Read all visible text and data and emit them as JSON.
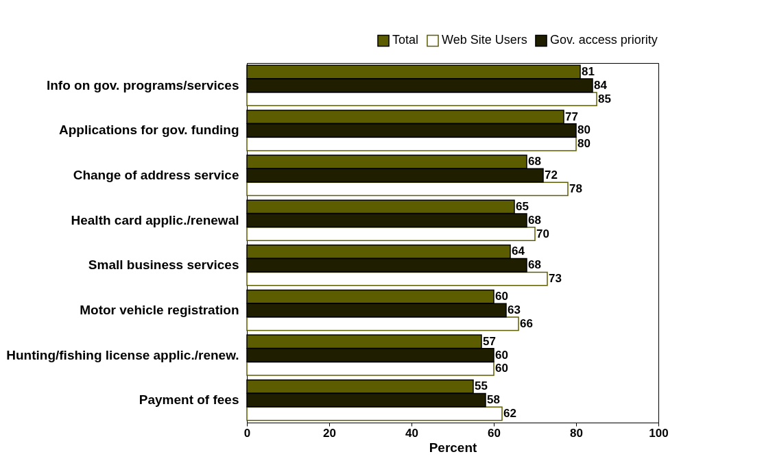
{
  "chart_data": {
    "type": "bar",
    "orientation": "horizontal",
    "xlabel": "Percent",
    "categories": [
      "Info on gov. programs/services",
      "Applications for gov. funding",
      "Change of address service",
      "Health card applic./renewal",
      "Small business services",
      "Motor vehicle registration",
      "Hunting/fishing license applic./renew.",
      "Payment of fees"
    ],
    "series": [
      {
        "name": "Total",
        "color": "#5c5c00",
        "values": [
          81,
          77,
          68,
          65,
          64,
          60,
          57,
          55
        ]
      },
      {
        "name": "Web Site Users",
        "color": "#ffffff",
        "values": [
          85,
          80,
          78,
          70,
          73,
          66,
          60,
          62
        ]
      },
      {
        "name": "Gov. access priority",
        "color": "#1f1f00",
        "values": [
          84,
          80,
          72,
          68,
          68,
          63,
          60,
          58
        ]
      }
    ],
    "xlim": [
      0,
      100
    ],
    "xticks": [
      0,
      20,
      40,
      60,
      80,
      100
    ],
    "grid": false,
    "legend": "top right",
    "data_labels": true
  }
}
